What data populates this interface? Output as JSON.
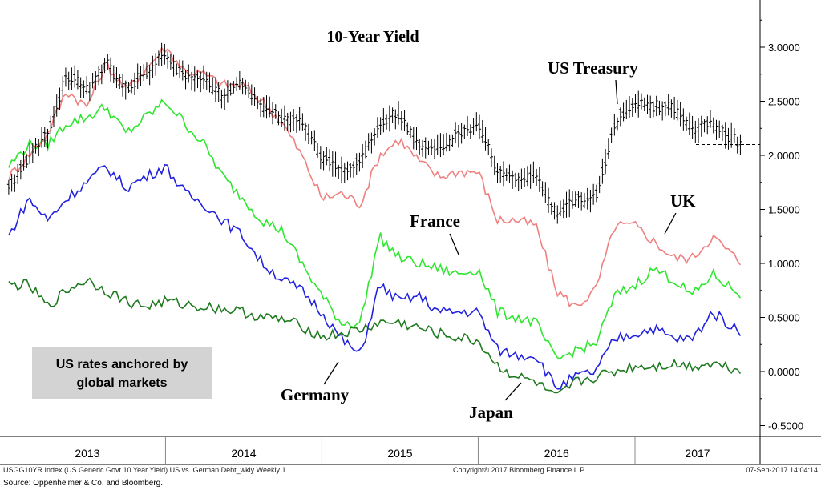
{
  "chart_data": {
    "type": "line",
    "title": "10-Year Yield",
    "y_axis_side": "right",
    "ylim": [
      -0.6,
      3.4
    ],
    "yticks": [
      "3.0000",
      "2.5000",
      "2.0000",
      "1.5000",
      "1.0000",
      "0.5000",
      "0.0000",
      "-0.5000"
    ],
    "ytick_values": [
      3.0,
      2.5,
      2.0,
      1.5,
      1.0,
      0.5,
      0.0,
      -0.5
    ],
    "x_years": [
      "2013",
      "2014",
      "2015",
      "2016",
      "2017"
    ],
    "grid": false,
    "x": [
      "2012-12-31",
      "2013-02-15",
      "2013-04-01",
      "2013-05-15",
      "2013-07-01",
      "2013-08-15",
      "2013-10-01",
      "2013-11-15",
      "2014-01-01",
      "2014-02-15",
      "2014-04-01",
      "2014-05-15",
      "2014-07-01",
      "2014-08-15",
      "2014-10-01",
      "2014-11-15",
      "2015-01-01",
      "2015-02-15",
      "2015-04-01",
      "2015-05-15",
      "2015-07-01",
      "2015-08-15",
      "2015-10-01",
      "2015-11-15",
      "2016-01-01",
      "2016-02-15",
      "2016-04-01",
      "2016-05-15",
      "2016-07-01",
      "2016-08-15",
      "2016-10-01",
      "2016-11-15",
      "2017-01-01",
      "2017-02-15",
      "2017-04-01",
      "2017-05-15",
      "2017-07-01",
      "2017-09-07"
    ],
    "series": [
      {
        "name": "US Treasury",
        "style": "ohlc-bar",
        "color": "#000000",
        "values": [
          1.7,
          2.0,
          2.2,
          2.75,
          2.6,
          2.85,
          2.62,
          2.75,
          2.95,
          2.72,
          2.7,
          2.55,
          2.65,
          2.45,
          2.35,
          2.3,
          2.0,
          1.85,
          1.95,
          2.3,
          2.4,
          2.1,
          2.05,
          2.2,
          2.3,
          1.85,
          1.75,
          1.8,
          1.45,
          1.58,
          1.6,
          2.3,
          2.5,
          2.45,
          2.45,
          2.25,
          2.3,
          2.1
        ]
      },
      {
        "name": "UK",
        "color": "#f08080",
        "values": [
          1.8,
          2.0,
          2.2,
          2.6,
          2.45,
          2.85,
          2.6,
          2.8,
          3.0,
          2.78,
          2.75,
          2.65,
          2.65,
          2.5,
          2.3,
          2.0,
          1.6,
          1.65,
          1.55,
          2.0,
          2.15,
          1.95,
          1.8,
          1.85,
          1.85,
          1.4,
          1.4,
          1.35,
          0.75,
          0.6,
          0.75,
          1.35,
          1.35,
          1.2,
          1.05,
          1.05,
          1.25,
          1.0
        ]
      },
      {
        "name": "France",
        "color": "#2ee62e",
        "values": [
          1.9,
          2.1,
          2.1,
          2.3,
          2.35,
          2.45,
          2.2,
          2.35,
          2.5,
          2.3,
          2.1,
          1.8,
          1.6,
          1.4,
          1.3,
          1.0,
          0.7,
          0.45,
          0.45,
          1.25,
          1.05,
          1.0,
          0.95,
          0.9,
          0.95,
          0.55,
          0.5,
          0.45,
          0.1,
          0.2,
          0.25,
          0.7,
          0.8,
          0.95,
          0.85,
          0.7,
          0.9,
          0.7
        ]
      },
      {
        "name": "Germany",
        "color": "#2222dd",
        "values": [
          1.25,
          1.6,
          1.4,
          1.6,
          1.75,
          1.9,
          1.7,
          1.8,
          1.9,
          1.65,
          1.55,
          1.4,
          1.25,
          1.0,
          0.85,
          0.75,
          0.55,
          0.3,
          0.15,
          0.8,
          0.65,
          0.7,
          0.55,
          0.55,
          0.55,
          0.2,
          0.15,
          0.15,
          -0.15,
          -0.05,
          0.0,
          0.3,
          0.35,
          0.4,
          0.3,
          0.3,
          0.55,
          0.35
        ]
      },
      {
        "name": "Japan",
        "color": "#1f7a1f",
        "values": [
          0.8,
          0.8,
          0.6,
          0.75,
          0.85,
          0.75,
          0.65,
          0.6,
          0.65,
          0.62,
          0.6,
          0.58,
          0.55,
          0.5,
          0.48,
          0.42,
          0.32,
          0.35,
          0.38,
          0.45,
          0.45,
          0.4,
          0.35,
          0.31,
          0.28,
          0.05,
          -0.05,
          -0.1,
          -0.25,
          -0.1,
          -0.05,
          0.0,
          0.05,
          0.05,
          0.07,
          0.05,
          0.08,
          0.01
        ]
      }
    ],
    "annotations": {
      "us": "US Treasury",
      "uk": "UK",
      "france": "France",
      "germany": "Germany",
      "japan": "Japan",
      "callout": [
        "US rates anchored by",
        "global markets"
      ]
    },
    "footer_left": "USGG10YR Index (US Generic Govt 10 Year Yield) US vs. German Debt_wkly  Weekly 1",
    "footer_mid": "Copyright® 2017 Bloomberg Finance L.P.",
    "footer_right": "07-Sep-2017 14:04:14",
    "source": "Source: Oppenheimer & Co. and Bloomberg."
  }
}
